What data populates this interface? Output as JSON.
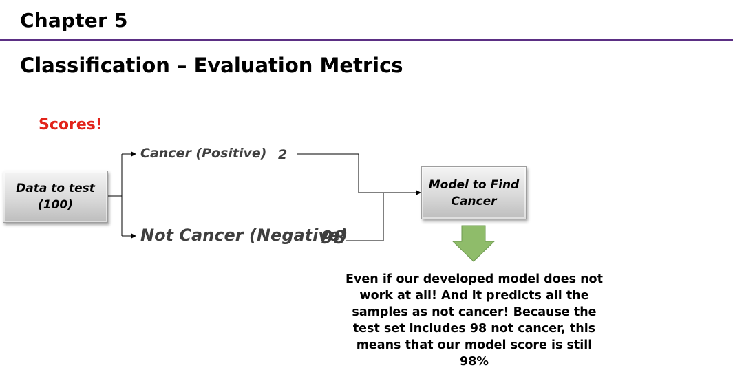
{
  "header": {
    "chapter": "Chapter 5",
    "title": "Classification – Evaluation Metrics"
  },
  "diagram": {
    "scores_label": "Scores!",
    "input_box": {
      "line1": "Data to test",
      "line2": "(100)"
    },
    "branch_positive": {
      "label": "Cancer (Positive)",
      "count": "2"
    },
    "branch_negative": {
      "label": "Not Cancer (Negative)",
      "count": "98"
    },
    "model_box": {
      "line1": "Model to Find",
      "line2": "Cancer"
    },
    "caption": "Even if our developed model does not work at all! And it predicts all the samples as not cancer! Because the test set includes 98 not cancer, this means that our model score is still 98%"
  },
  "colors": {
    "divider": "#5b2f84",
    "scores": "#e2231a",
    "arrow_fill": "#8fbc6a",
    "arrow_stroke": "#6e9a4f"
  }
}
